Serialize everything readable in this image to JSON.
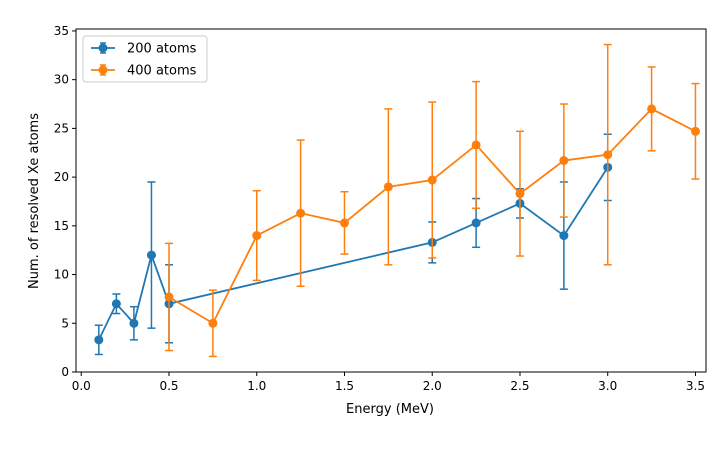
{
  "chart_data": {
    "type": "line",
    "title": "",
    "xlabel": "Energy (MeV)",
    "ylabel": "Num. of resolved Xe atoms",
    "xlim": [
      -0.03,
      3.56
    ],
    "ylim": [
      0,
      35.2
    ],
    "xticks": [
      0.0,
      0.5,
      1.0,
      1.5,
      2.0,
      2.5,
      3.0,
      3.5
    ],
    "yticks": [
      0,
      5,
      10,
      15,
      20,
      25,
      30,
      35
    ],
    "xtick_labels": [
      "0.0",
      "0.5",
      "1.0",
      "1.5",
      "2.0",
      "2.5",
      "3.0",
      "3.5"
    ],
    "ytick_labels": [
      "0",
      "5",
      "10",
      "15",
      "20",
      "25",
      "30",
      "35"
    ],
    "grid": false,
    "legend_position": "top-left",
    "series": [
      {
        "name": "200 atoms",
        "color": "#1f77b4",
        "x": [
          0.1,
          0.2,
          0.3,
          0.4,
          0.5,
          2.0,
          2.25,
          2.5,
          2.75,
          3.0
        ],
        "y": [
          3.3,
          7.0,
          5.0,
          12.0,
          7.0,
          13.3,
          15.3,
          17.3,
          14.0,
          21.0
        ],
        "err": [
          1.5,
          1.0,
          1.7,
          7.5,
          4.0,
          2.1,
          2.5,
          1.5,
          5.5,
          3.4
        ]
      },
      {
        "name": "400 atoms",
        "color": "#ff7f0e",
        "x": [
          0.5,
          0.75,
          1.0,
          1.25,
          1.5,
          1.75,
          2.0,
          2.25,
          2.5,
          2.75,
          3.0,
          3.25,
          3.5
        ],
        "y": [
          7.7,
          5.0,
          14.0,
          16.3,
          15.3,
          19.0,
          19.7,
          23.3,
          18.3,
          21.7,
          22.3,
          27.0,
          24.7
        ],
        "err": [
          5.5,
          3.4,
          4.6,
          7.5,
          3.2,
          8.0,
          8.0,
          6.5,
          6.4,
          5.8,
          11.3,
          4.3,
          4.9
        ]
      }
    ]
  }
}
